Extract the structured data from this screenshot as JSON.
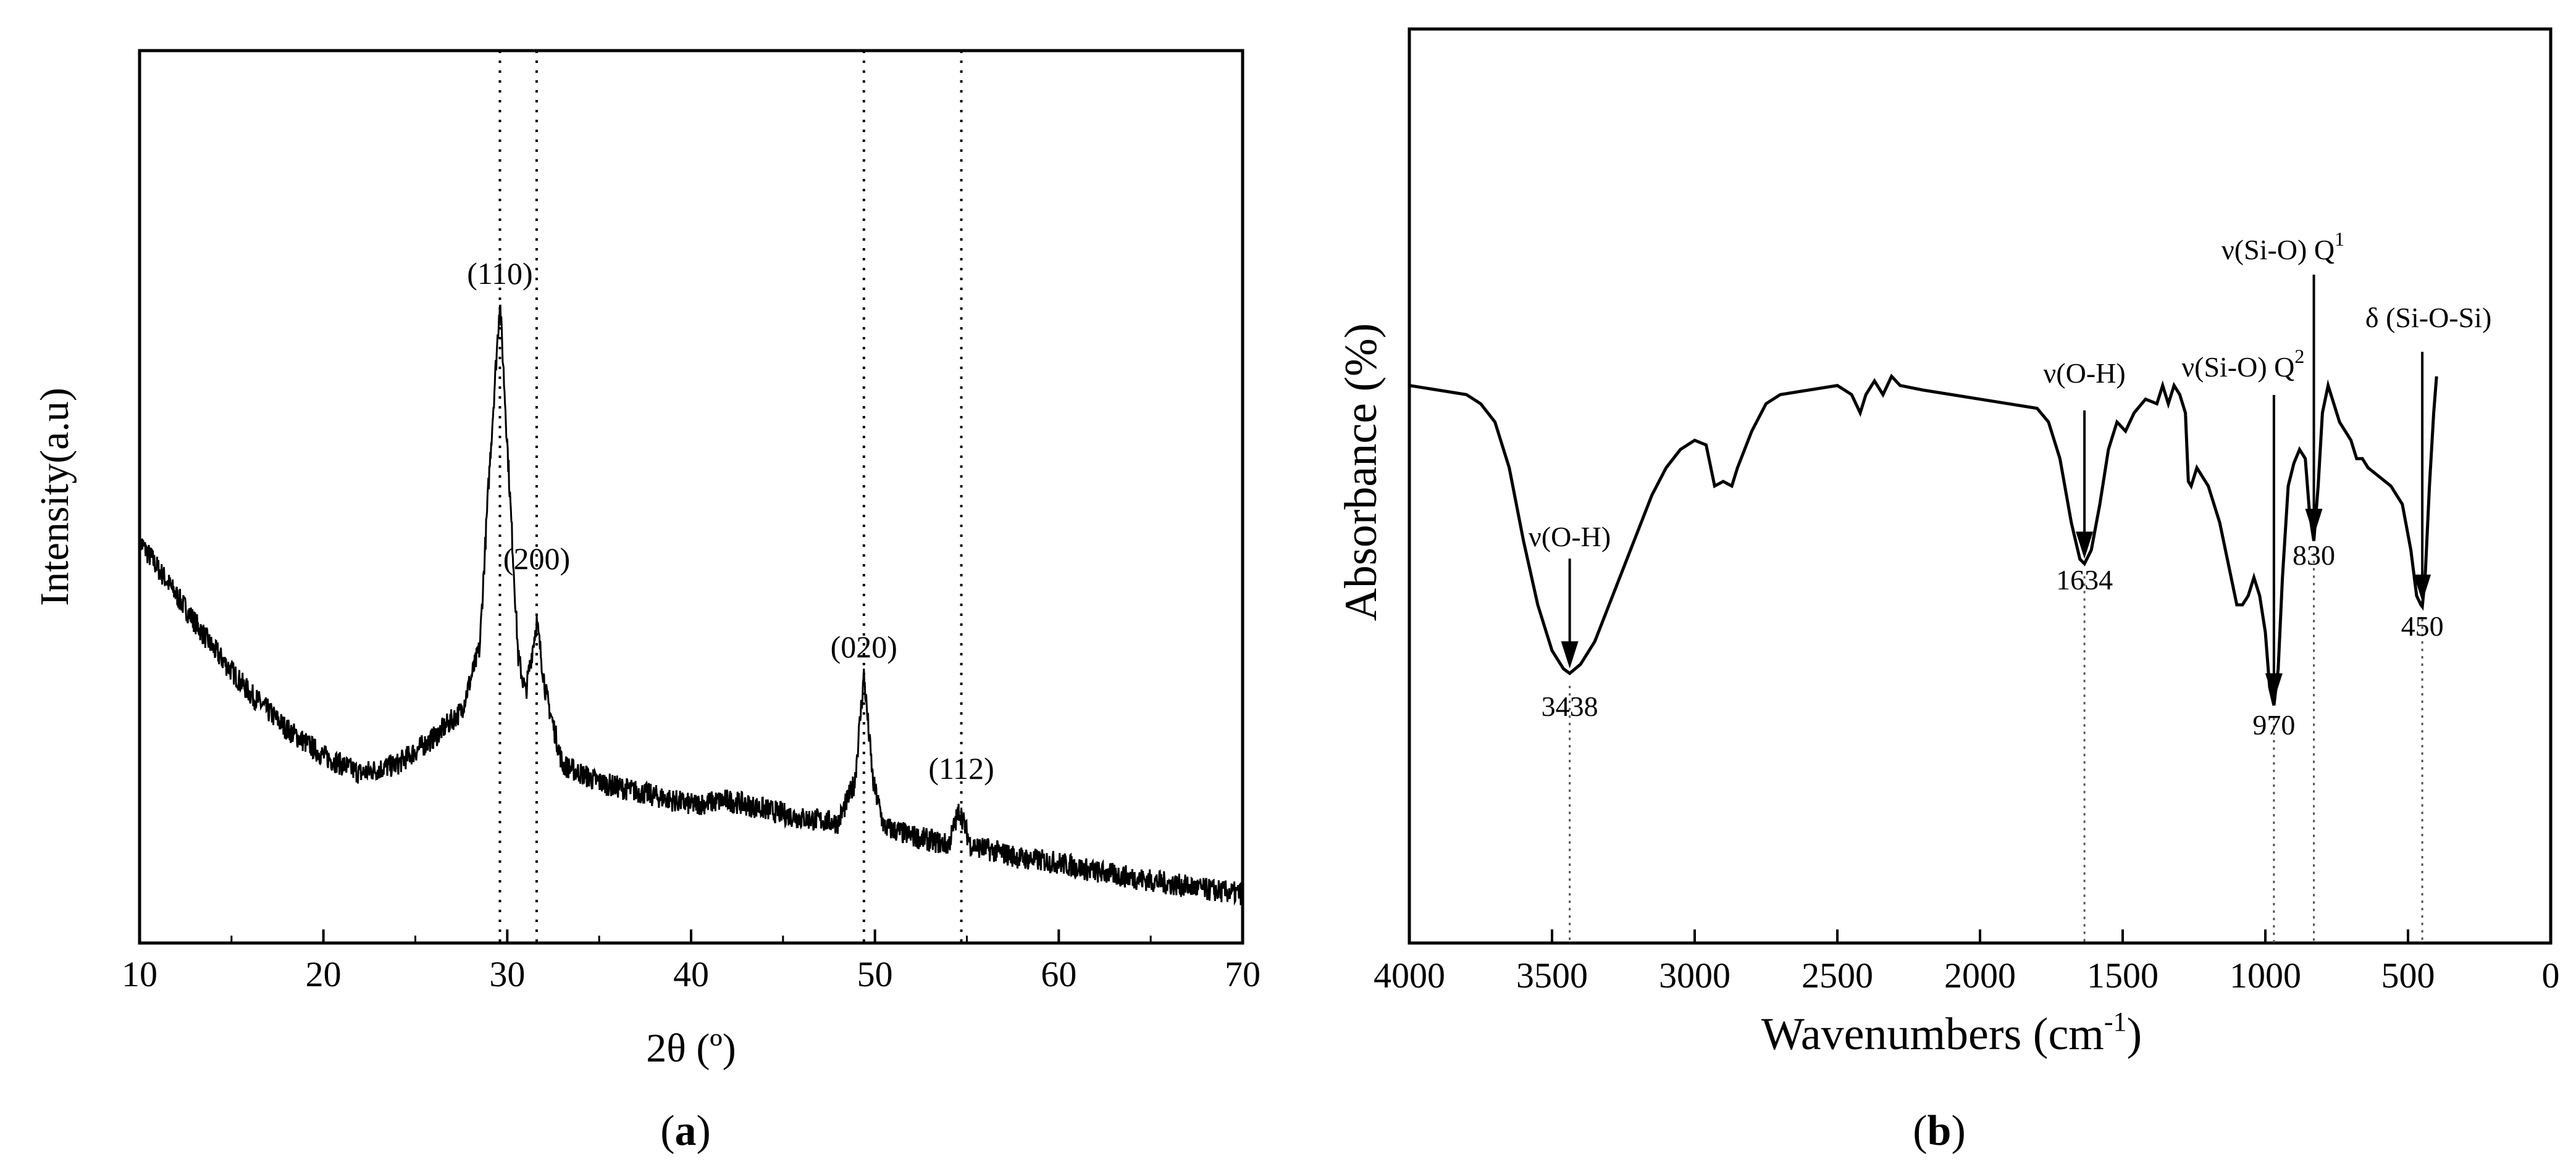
{
  "chart_data": [
    {
      "type": "line",
      "panel": "a",
      "caption_letter": "a",
      "xlabel": "2θ (º)",
      "ylabel": "Intensity(a.u)",
      "xlim": [
        10,
        70
      ],
      "ylim": [
        0,
        100
      ],
      "x_ticks": [
        10,
        20,
        30,
        40,
        50,
        60,
        70
      ],
      "y_ticks_shown": false,
      "baseline_points": [
        [
          10,
          45
        ],
        [
          12,
          39
        ],
        [
          14,
          33
        ],
        [
          16,
          28
        ],
        [
          18,
          24
        ],
        [
          20,
          21
        ],
        [
          22,
          19
        ],
        [
          24,
          20
        ],
        [
          26,
          23
        ],
        [
          27.5,
          26
        ],
        [
          28.5,
          33
        ],
        [
          29.0,
          52
        ],
        [
          29.6,
          72
        ],
        [
          30.1,
          52
        ],
        [
          30.6,
          32
        ],
        [
          31.0,
          28
        ],
        [
          31.6,
          36
        ],
        [
          32.1,
          28
        ],
        [
          33,
          20
        ],
        [
          35,
          18
        ],
        [
          37,
          17
        ],
        [
          40,
          15.5
        ],
        [
          42,
          16
        ],
        [
          44,
          15
        ],
        [
          46,
          14
        ],
        [
          48,
          13.5
        ],
        [
          48.9,
          18
        ],
        [
          49.4,
          30
        ],
        [
          49.9,
          18
        ],
        [
          50.5,
          13
        ],
        [
          52,
          12
        ],
        [
          54,
          11
        ],
        [
          54.6,
          15
        ],
        [
          55.2,
          11
        ],
        [
          58,
          9.5
        ],
        [
          60,
          9
        ],
        [
          62,
          8
        ],
        [
          65,
          7
        ],
        [
          68,
          6
        ],
        [
          70,
          5.5
        ]
      ],
      "reference_lines": [
        29.6,
        31.6,
        49.4,
        54.7
      ],
      "peak_labels": [
        {
          "x": 29.6,
          "label": "(110)"
        },
        {
          "x": 31.6,
          "label": "(200)"
        },
        {
          "x": 49.4,
          "label": "(020)"
        },
        {
          "x": 54.7,
          "label": "(112)"
        }
      ]
    },
    {
      "type": "line",
      "panel": "b",
      "caption_letter": "b",
      "xlabel": "Wavenumbers (cm",
      "xlabel_sup": "-1",
      "xlabel_end": ")",
      "ylabel": "Absorbance (%)",
      "xlim": [
        4000,
        0
      ],
      "ylim": [
        0,
        100
      ],
      "x_ticks": [
        4000,
        3500,
        3000,
        2500,
        2000,
        1500,
        1000,
        500,
        0
      ],
      "y_ticks_shown": false,
      "spectrum_points": [
        [
          4000,
          61
        ],
        [
          3900,
          60.5
        ],
        [
          3800,
          60
        ],
        [
          3750,
          59
        ],
        [
          3700,
          57
        ],
        [
          3650,
          52
        ],
        [
          3600,
          44
        ],
        [
          3550,
          37
        ],
        [
          3500,
          32
        ],
        [
          3460,
          30
        ],
        [
          3438,
          29.5
        ],
        [
          3400,
          30.5
        ],
        [
          3350,
          33
        ],
        [
          3300,
          37
        ],
        [
          3250,
          41
        ],
        [
          3200,
          45
        ],
        [
          3150,
          49
        ],
        [
          3100,
          52
        ],
        [
          3050,
          54
        ],
        [
          3000,
          55
        ],
        [
          2960,
          54.5
        ],
        [
          2930,
          50
        ],
        [
          2900,
          50.5
        ],
        [
          2870,
          50
        ],
        [
          2850,
          52
        ],
        [
          2800,
          56
        ],
        [
          2750,
          59
        ],
        [
          2700,
          60
        ],
        [
          2600,
          60.5
        ],
        [
          2500,
          61
        ],
        [
          2450,
          60
        ],
        [
          2420,
          58
        ],
        [
          2400,
          60
        ],
        [
          2370,
          61.5
        ],
        [
          2340,
          60
        ],
        [
          2310,
          62
        ],
        [
          2280,
          61
        ],
        [
          2200,
          60.5
        ],
        [
          2100,
          60
        ],
        [
          2000,
          59.5
        ],
        [
          1900,
          59
        ],
        [
          1800,
          58.5
        ],
        [
          1760,
          57
        ],
        [
          1720,
          53
        ],
        [
          1680,
          46
        ],
        [
          1650,
          42
        ],
        [
          1634,
          41.5
        ],
        [
          1610,
          43
        ],
        [
          1580,
          48
        ],
        [
          1550,
          54
        ],
        [
          1520,
          57
        ],
        [
          1490,
          56
        ],
        [
          1460,
          58
        ],
        [
          1420,
          59.5
        ],
        [
          1380,
          59
        ],
        [
          1360,
          61
        ],
        [
          1340,
          59
        ],
        [
          1320,
          61
        ],
        [
          1300,
          60
        ],
        [
          1280,
          58
        ],
        [
          1270,
          50.5
        ],
        [
          1260,
          50
        ],
        [
          1240,
          52
        ],
        [
          1200,
          50
        ],
        [
          1160,
          46
        ],
        [
          1120,
          40
        ],
        [
          1100,
          37
        ],
        [
          1080,
          37
        ],
        [
          1060,
          38
        ],
        [
          1040,
          40
        ],
        [
          1020,
          38
        ],
        [
          1000,
          34
        ],
        [
          985,
          28
        ],
        [
          970,
          26
        ],
        [
          955,
          30
        ],
        [
          940,
          40
        ],
        [
          920,
          50
        ],
        [
          900,
          52.5
        ],
        [
          880,
          54
        ],
        [
          860,
          53
        ],
        [
          845,
          47
        ],
        [
          830,
          44
        ],
        [
          815,
          50
        ],
        [
          800,
          58
        ],
        [
          780,
          61
        ],
        [
          760,
          59
        ],
        [
          740,
          57
        ],
        [
          720,
          56
        ],
        [
          700,
          55
        ],
        [
          680,
          53
        ],
        [
          660,
          53
        ],
        [
          640,
          52
        ],
        [
          600,
          51
        ],
        [
          560,
          50
        ],
        [
          520,
          48
        ],
        [
          490,
          43
        ],
        [
          470,
          38
        ],
        [
          455,
          37
        ],
        [
          450,
          36.8
        ],
        [
          440,
          40
        ],
        [
          425,
          50
        ],
        [
          410,
          58
        ],
        [
          400,
          62
        ]
      ],
      "reference_lines": [
        3438,
        1634,
        970,
        830,
        450
      ],
      "arrows": [
        {
          "x": 3438,
          "label": "ν(O-H)"
        },
        {
          "x": 1634,
          "label": "ν(O-H)"
        },
        {
          "x": 970,
          "label": "ν(Si-O) Q",
          "sup": "2"
        },
        {
          "x": 830,
          "label": "ν(Si-O) Q",
          "sup": "1"
        },
        {
          "x": 450,
          "label": "δ (Si-O-Si)"
        }
      ],
      "band_values": [
        "3438",
        "1634",
        "970",
        "830",
        "450"
      ]
    }
  ]
}
